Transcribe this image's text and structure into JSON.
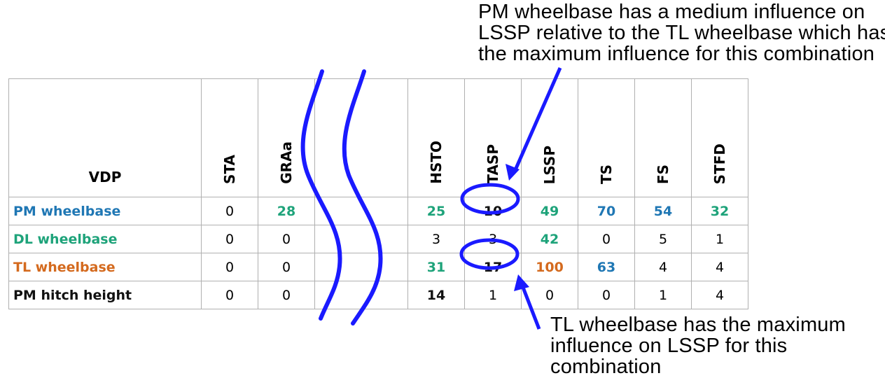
{
  "annotations": {
    "top": "PM wheelbase has a medium influence on\nLSSP relative to the TL wheelbase which has\nthe maximum influence for this combination",
    "bottom": "TL wheelbase has the maximum\ninfluence on LSSP for this\ncombination"
  },
  "table": {
    "corner_header": "VDP",
    "columns": [
      "STA",
      "GRAa",
      "HSTO",
      "TASP",
      "LSSP",
      "TS",
      "FS",
      "STFD"
    ],
    "rows": [
      {
        "label": "PM wheelbase",
        "label_color": "blue",
        "values": [
          "0",
          "28",
          "25",
          "10",
          "49",
          "70",
          "54",
          "32"
        ],
        "styles": [
          "",
          "green",
          "green",
          "black b",
          "green",
          "blue",
          "blue",
          "green"
        ]
      },
      {
        "label": "DL wheelbase",
        "label_color": "green",
        "values": [
          "0",
          "0",
          "3",
          "3",
          "42",
          "0",
          "5",
          "1"
        ],
        "styles": [
          "",
          "",
          "",
          "",
          "green",
          "",
          "",
          ""
        ]
      },
      {
        "label": "TL wheelbase",
        "label_color": "orange",
        "values": [
          "0",
          "0",
          "31",
          "17",
          "100",
          "63",
          "4",
          "4"
        ],
        "styles": [
          "",
          "",
          "green",
          "black b",
          "orange",
          "blue",
          "",
          ""
        ]
      },
      {
        "label": "PM hitch height",
        "label_color": "black",
        "values": [
          "0",
          "0",
          "14",
          "1",
          "0",
          "0",
          "1",
          "4"
        ],
        "styles": [
          "",
          "",
          "black b",
          "",
          "",
          "",
          "",
          ""
        ]
      }
    ]
  },
  "colors": {
    "blue": "#1f77b4",
    "green": "#1ea37a",
    "orange": "#d46a1e",
    "marker": "#1a1aff"
  }
}
